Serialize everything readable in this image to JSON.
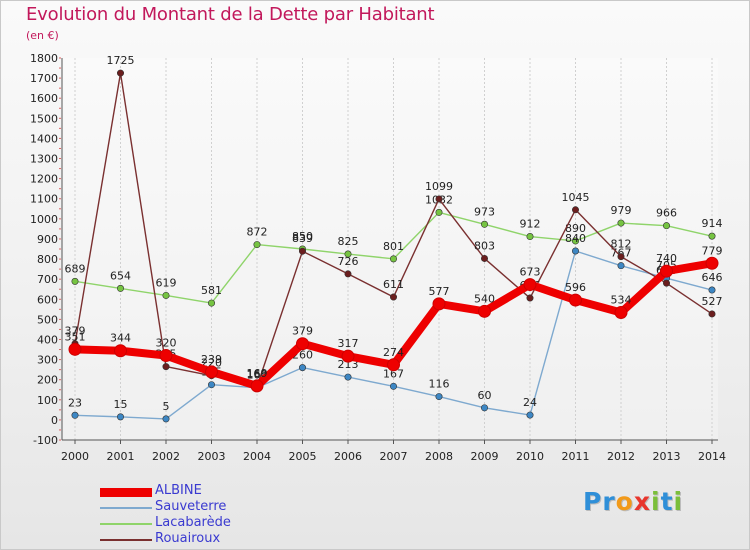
{
  "title": "Evolution du Montant de la Dette par Habitant",
  "unit_label": "(en €)",
  "logo": {
    "letters": [
      "P",
      "r",
      "o",
      "x",
      "i",
      "t",
      "i"
    ],
    "colors": [
      "#2f8fd8",
      "#2f8fd8",
      "#f29a1a",
      "#e8362d",
      "#7bbf3a",
      "#2f8fd8",
      "#7bbf3a"
    ]
  },
  "chart_data": {
    "type": "line",
    "title": "Evolution du Montant de la Dette par Habitant",
    "ylabel": "(en €)",
    "xlabel": "",
    "ylim": [
      -100,
      1800
    ],
    "yticks": [
      -100,
      0,
      100,
      200,
      300,
      400,
      500,
      600,
      700,
      800,
      900,
      1000,
      1100,
      1200,
      1300,
      1400,
      1500,
      1600,
      1700,
      1800
    ],
    "x": [
      "2000",
      "2001",
      "2002",
      "2003",
      "2004",
      "2005",
      "2006",
      "2007",
      "2008",
      "2009",
      "2010",
      "2011",
      "2012",
      "2013",
      "2014"
    ],
    "grid": "dashed vertical at each year",
    "legend_position": "bottom-left",
    "series": [
      {
        "name": "Lacabarède",
        "color": "#8fd46a",
        "marker": "#76c442",
        "width": 1.4,
        "values": [
          689,
          654,
          619,
          581,
          872,
          850,
          825,
          801,
          1032,
          973,
          912,
          890,
          979,
          966,
          914
        ]
      },
      {
        "name": "Sauveterre",
        "color": "#7ea9cf",
        "marker": "#3d87c4",
        "width": 1.4,
        "values": [
          23,
          15,
          5,
          175,
          160,
          260,
          213,
          167,
          116,
          60,
          24,
          840,
          767,
          705,
          646
        ]
      },
      {
        "name": "Rouairoux",
        "color": "#7a3030",
        "marker": "#6b1e1e",
        "width": 1.4,
        "values": [
          379,
          1725,
          265,
          220,
          166,
          839,
          726,
          611,
          1099,
          803,
          606,
          1045,
          812,
          680,
          527
        ]
      },
      {
        "name": "ALBINE",
        "color": "#ee0000",
        "marker": "#ee0000",
        "width": 8,
        "values": [
          351,
          344,
          320,
          239,
          169,
          379,
          317,
          274,
          577,
          540,
          673,
          596,
          534,
          740,
          779
        ]
      }
    ],
    "data_labels": {
      "Lacabarède": [
        "689",
        "654",
        "619",
        "581",
        "872",
        "850",
        "825",
        "801",
        "1032",
        "973",
        "912",
        "890",
        "979",
        "966",
        "914"
      ],
      "Sauveterre": [
        "23",
        "15",
        "5",
        "175",
        "160",
        "260",
        "213",
        "167",
        "116",
        "60",
        "24",
        "840",
        "767",
        "705",
        "646"
      ],
      "Rouairoux": [
        "379",
        "1725",
        "265",
        "220",
        "166",
        "839",
        "726",
        "611",
        "1099",
        "803",
        "606",
        "1045",
        "812",
        "680",
        "527"
      ],
      "ALBINE": [
        "351",
        "344",
        "320",
        "239",
        "169",
        "379",
        "317",
        "274",
        "577",
        "540",
        "673",
        "596",
        "534",
        "740",
        "779"
      ]
    },
    "legend_order": [
      "ALBINE",
      "Sauveterre",
      "Lacabarède",
      "Rouairoux"
    ]
  }
}
